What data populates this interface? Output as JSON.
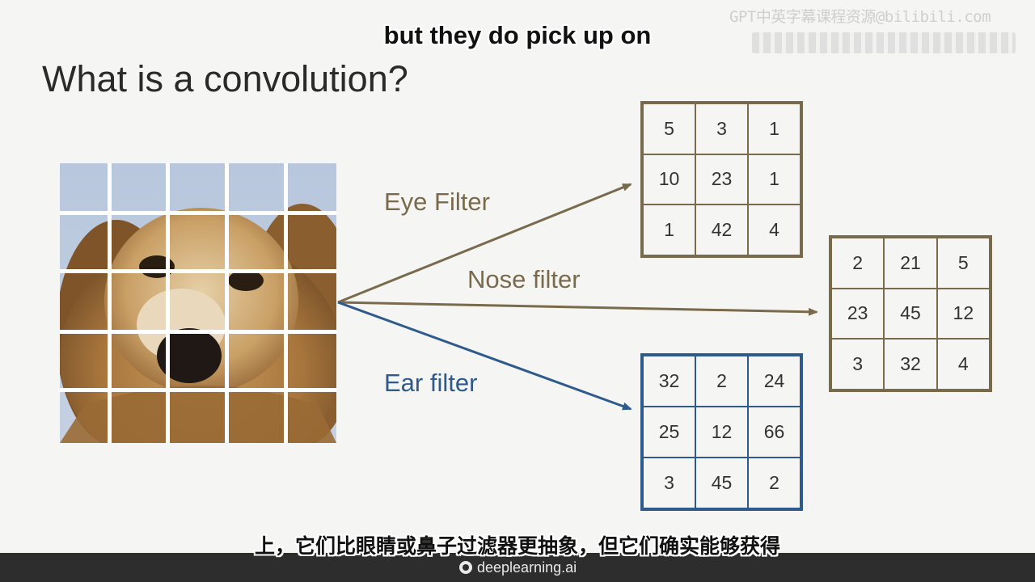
{
  "subtitles": {
    "english": "but they do pick up on",
    "chinese": "上，它们比眼睛或鼻子过滤器更抽象，但它们确实能够获得"
  },
  "watermark": {
    "text": "GPT中英字幕课程资源@bilibili.com"
  },
  "slide": {
    "title": "What is a convolution?"
  },
  "filters": {
    "eye": {
      "label": "Eye Filter",
      "color": "#7a6a4c",
      "matrix": [
        [
          "5",
          "3",
          "1"
        ],
        [
          "10",
          "23",
          "1"
        ],
        [
          "1",
          "42",
          "4"
        ]
      ]
    },
    "nose": {
      "label": "Nose filter",
      "color": "#7a6a4c",
      "matrix": [
        [
          "2",
          "21",
          "5"
        ],
        [
          "23",
          "45",
          "12"
        ],
        [
          "3",
          "32",
          "4"
        ]
      ]
    },
    "ear": {
      "label": "Ear filter",
      "color": "#2e5a8c",
      "matrix": [
        [
          "32",
          "2",
          "24"
        ],
        [
          "25",
          "12",
          "66"
        ],
        [
          "3",
          "45",
          "2"
        ]
      ]
    }
  },
  "footer": {
    "brand": "deeplearning.ai"
  }
}
